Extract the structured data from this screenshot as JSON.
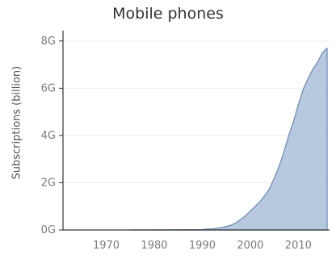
{
  "chart_data": {
    "type": "area",
    "title": "Mobile phones",
    "xlabel": "",
    "ylabel": "Subscriptions (billion)",
    "xlim": [
      1961,
      2016.5
    ],
    "ylim": [
      0,
      8.3
    ],
    "x_ticks": [
      1970,
      1980,
      1990,
      2000,
      2010
    ],
    "y_ticks": [
      {
        "value": 0,
        "label": "0G"
      },
      {
        "value": 2,
        "label": "2G"
      },
      {
        "value": 4,
        "label": "4G"
      },
      {
        "value": 6,
        "label": "6G"
      },
      {
        "value": 8,
        "label": "8G"
      }
    ],
    "grid": "horizontal",
    "legend": "none",
    "fill_color": "#b7c9de",
    "line_color": "#6b88ad",
    "x": [
      1975,
      1985,
      1990,
      1992,
      1994,
      1996,
      1997,
      1998,
      1999,
      2000,
      2001,
      2002,
      2003,
      2004,
      2005,
      2006,
      2007,
      2008,
      2009,
      2010,
      2011,
      2012,
      2013,
      2014,
      2015,
      2016
    ],
    "y": [
      0,
      0.01,
      0.02,
      0.05,
      0.1,
      0.2,
      0.3,
      0.45,
      0.6,
      0.8,
      1.0,
      1.2,
      1.45,
      1.75,
      2.2,
      2.7,
      3.3,
      4.0,
      4.6,
      5.3,
      5.95,
      6.4,
      6.8,
      7.1,
      7.5,
      7.7
    ]
  }
}
